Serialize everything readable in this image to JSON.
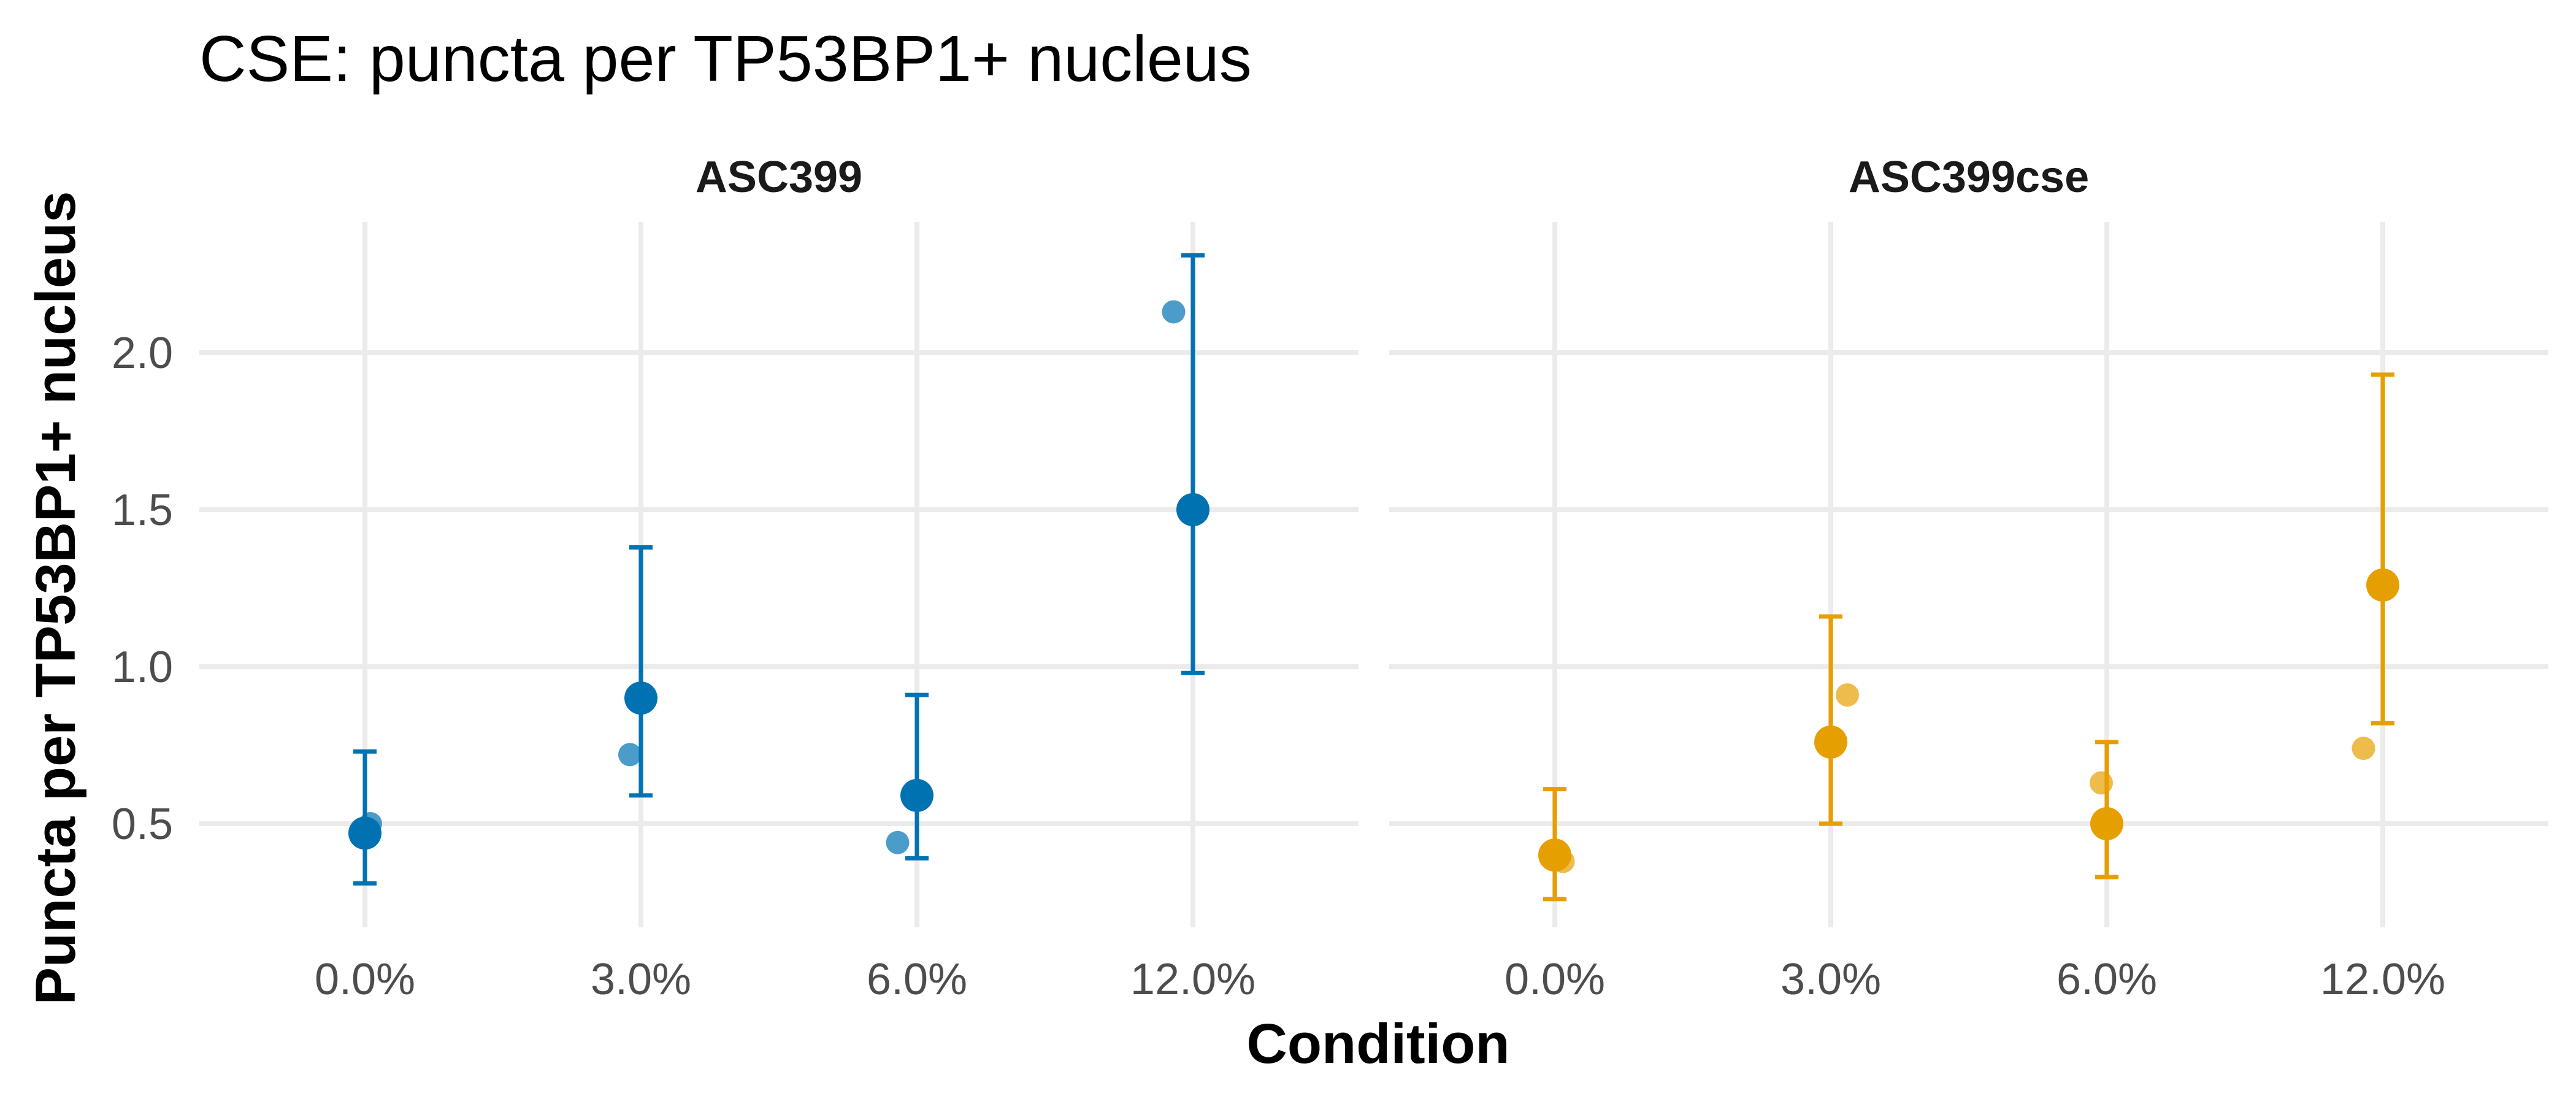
{
  "chart_data": {
    "type": "scatter",
    "title": "CSE: puncta per TP53BP1+ nucleus",
    "xlabel": "Condition",
    "ylabel": "Puncta per TP53BP1+ nucleus",
    "categories": [
      "0.0%",
      "3.0%",
      "6.0%",
      "12.0%"
    ],
    "ylim": [
      0.15,
      2.4
    ],
    "yticks": [
      0.5,
      1.0,
      1.5,
      2.0
    ],
    "ytick_labels": [
      "0.5",
      "1.0",
      "1.5",
      "2.0"
    ],
    "grid": true,
    "legend": "none",
    "panels": [
      {
        "name": "ASC399",
        "color": "#0072B2",
        "summary": [
          {
            "category": "0.0%",
            "mean": 0.47,
            "lower": 0.31,
            "upper": 0.73
          },
          {
            "category": "3.0%",
            "mean": 0.9,
            "lower": 0.59,
            "upper": 1.38
          },
          {
            "category": "6.0%",
            "mean": 0.59,
            "lower": 0.39,
            "upper": 0.91
          },
          {
            "category": "12.0%",
            "mean": 1.5,
            "lower": 0.98,
            "upper": 2.31
          }
        ],
        "points": [
          {
            "category": "0.0%",
            "y": 0.5,
            "jitter": 0.02
          },
          {
            "category": "3.0%",
            "y": 0.72,
            "jitter": -0.04
          },
          {
            "category": "6.0%",
            "y": 0.44,
            "jitter": -0.07
          },
          {
            "category": "12.0%",
            "y": 2.13,
            "jitter": -0.07
          }
        ]
      },
      {
        "name": "ASC399cse",
        "color": "#E69F00",
        "summary": [
          {
            "category": "0.0%",
            "mean": 0.4,
            "lower": 0.26,
            "upper": 0.61
          },
          {
            "category": "3.0%",
            "mean": 0.76,
            "lower": 0.5,
            "upper": 1.16
          },
          {
            "category": "6.0%",
            "mean": 0.5,
            "lower": 0.33,
            "upper": 0.76
          },
          {
            "category": "12.0%",
            "mean": 1.26,
            "lower": 0.82,
            "upper": 1.93
          }
        ],
        "points": [
          {
            "category": "0.0%",
            "y": 0.38,
            "jitter": 0.03
          },
          {
            "category": "3.0%",
            "y": 0.91,
            "jitter": 0.06
          },
          {
            "category": "6.0%",
            "y": 0.63,
            "jitter": -0.02
          },
          {
            "category": "12.0%",
            "y": 0.74,
            "jitter": -0.07
          }
        ]
      }
    ]
  }
}
